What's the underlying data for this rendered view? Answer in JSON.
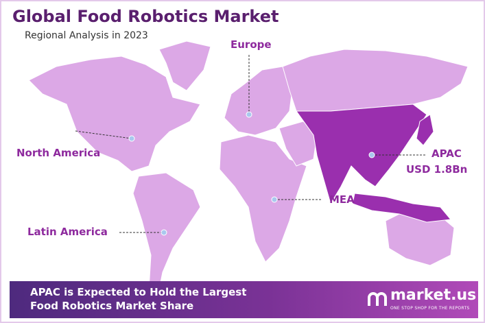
{
  "header": {
    "title": "Global Food Robotics Market",
    "subtitle": "Regional Analysis in 2023"
  },
  "regions": [
    {
      "label": "Europe"
    },
    {
      "label": "North America"
    },
    {
      "label": "Latin America"
    },
    {
      "label": "MEA"
    },
    {
      "label": "APAC",
      "value": "USD 1.8Bn"
    }
  ],
  "footer": {
    "text": "APAC is Expected to Hold the Largest Food Robotics Market Share",
    "brand": "market.us",
    "tagline": "ONE STOP SHOP FOR THE REPORTS"
  }
}
